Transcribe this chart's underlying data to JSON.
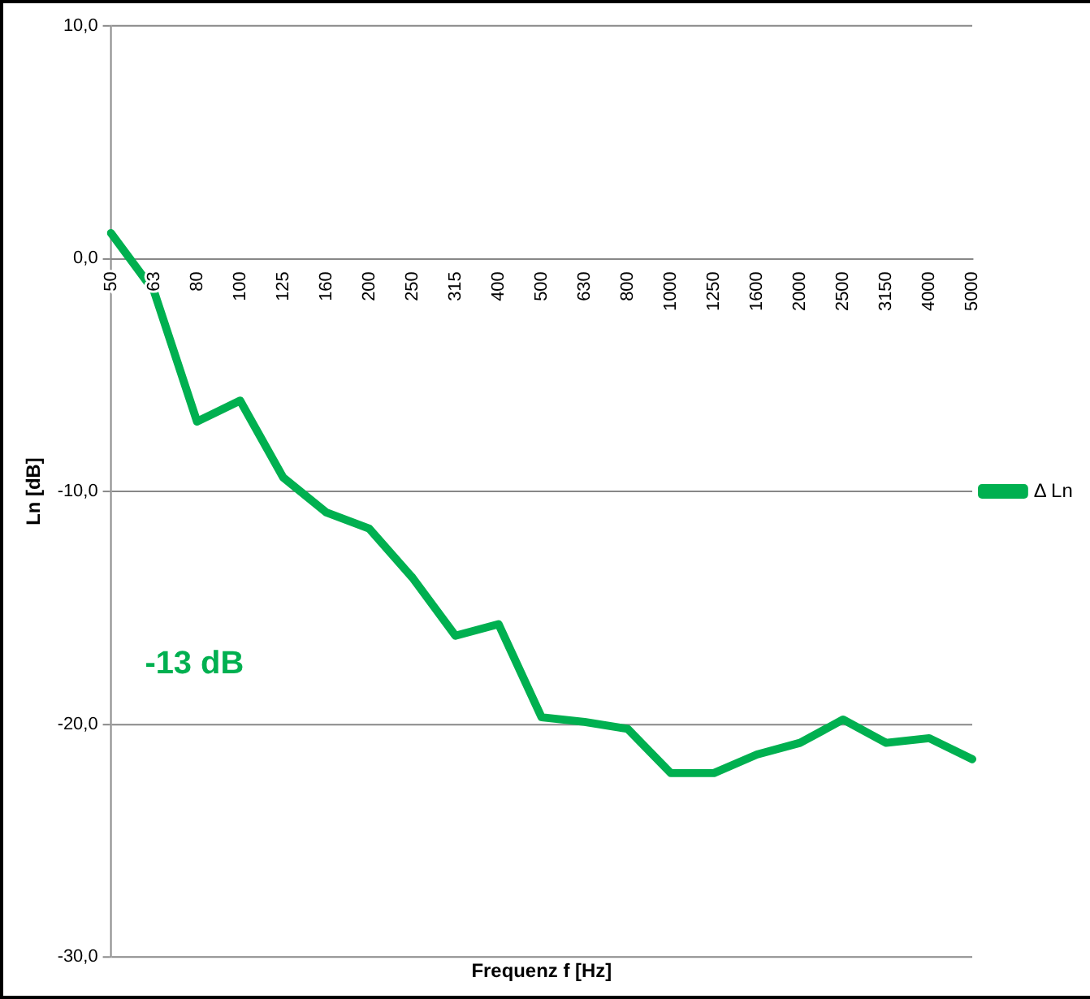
{
  "chart_data": {
    "type": "line",
    "xlabel": "Frequenz f [Hz]",
    "ylabel": "Ln [dB]",
    "categories": [
      "50",
      "63",
      "80",
      "100",
      "125",
      "160",
      "200",
      "250",
      "315",
      "400",
      "500",
      "630",
      "800",
      "1000",
      "1250",
      "1600",
      "2000",
      "2500",
      "3150",
      "4000",
      "5000"
    ],
    "series": [
      {
        "name": "Δ Ln",
        "color": "#00b050",
        "values": [
          1.1,
          -1.4,
          -7.0,
          -6.1,
          -9.4,
          -10.9,
          -11.6,
          -13.7,
          -16.2,
          -15.7,
          -19.7,
          -19.9,
          -20.2,
          -22.1,
          -22.1,
          -21.3,
          -20.8,
          -19.8,
          -20.8,
          -20.6,
          -21.5
        ]
      }
    ],
    "ylim": [
      -30,
      10
    ],
    "yticks": [
      {
        "value": -30,
        "label": "-30,0"
      },
      {
        "value": -20,
        "label": "-20,0"
      },
      {
        "value": -10,
        "label": "-10,0"
      },
      {
        "value": 0,
        "label": "0,0"
      },
      {
        "value": 10,
        "label": "10,0"
      }
    ],
    "annotations": [
      "-13 dB"
    ],
    "grid": "y",
    "legend": "right",
    "marker": "none",
    "line_style": "solid"
  }
}
